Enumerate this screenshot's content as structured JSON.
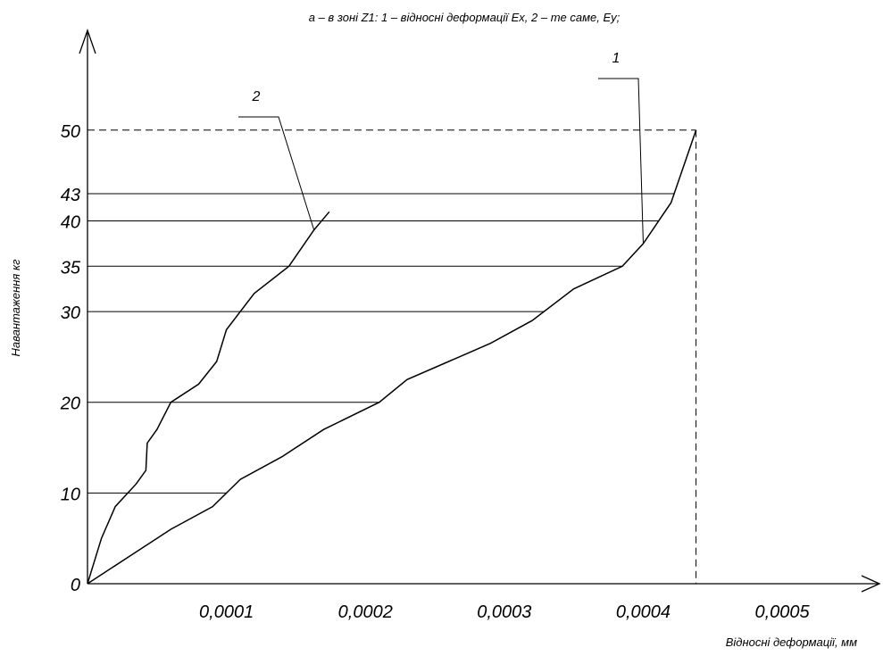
{
  "chart_data": {
    "type": "line",
    "title": "а – в зоні Z1: 1 – відносні деформації Ex, 2 – те саме, Ey;",
    "x_label": "Відносні деформації, мм",
    "y_label": "Навантаження кг",
    "xlim": [
      0,
      0.00057
    ],
    "ylim": [
      0,
      61
    ],
    "xticks": [
      {
        "value": 0.0001,
        "label": "0,0001"
      },
      {
        "value": 0.0002,
        "label": "0,0002"
      },
      {
        "value": 0.0003,
        "label": "0,0003"
      },
      {
        "value": 0.0004,
        "label": "0,0004"
      },
      {
        "value": 0.0005,
        "label": "0,0005"
      }
    ],
    "yticks": [
      0,
      10,
      20,
      30,
      35,
      40,
      43,
      50
    ],
    "grid": true,
    "series": [
      {
        "name": "1",
        "color": "#000000",
        "x": [
          0,
          3e-05,
          6e-05,
          9e-05,
          0.00011,
          0.00014,
          0.00017,
          0.00021,
          0.00023,
          0.00026,
          0.00029,
          0.00032,
          0.00035,
          0.000385,
          0.0004,
          0.00042,
          0.000438
        ],
        "values": [
          0,
          3,
          6,
          8.5,
          11.5,
          14,
          17,
          20,
          22.5,
          24.5,
          26.5,
          29,
          32.5,
          35,
          37.5,
          42,
          50
        ]
      },
      {
        "name": "2",
        "color": "#000000",
        "x": [
          0,
          1e-05,
          2e-05,
          3.5e-05,
          4.2e-05,
          4.3e-05,
          5e-05,
          6e-05,
          8e-05,
          9.3e-05,
          0.0001,
          0.00012,
          0.000145,
          0.000163,
          0.000174
        ],
        "values": [
          0,
          5,
          8.5,
          11,
          12.5,
          15.5,
          17,
          20,
          22,
          24.5,
          28,
          32,
          35,
          39,
          41
        ]
      }
    ]
  }
}
